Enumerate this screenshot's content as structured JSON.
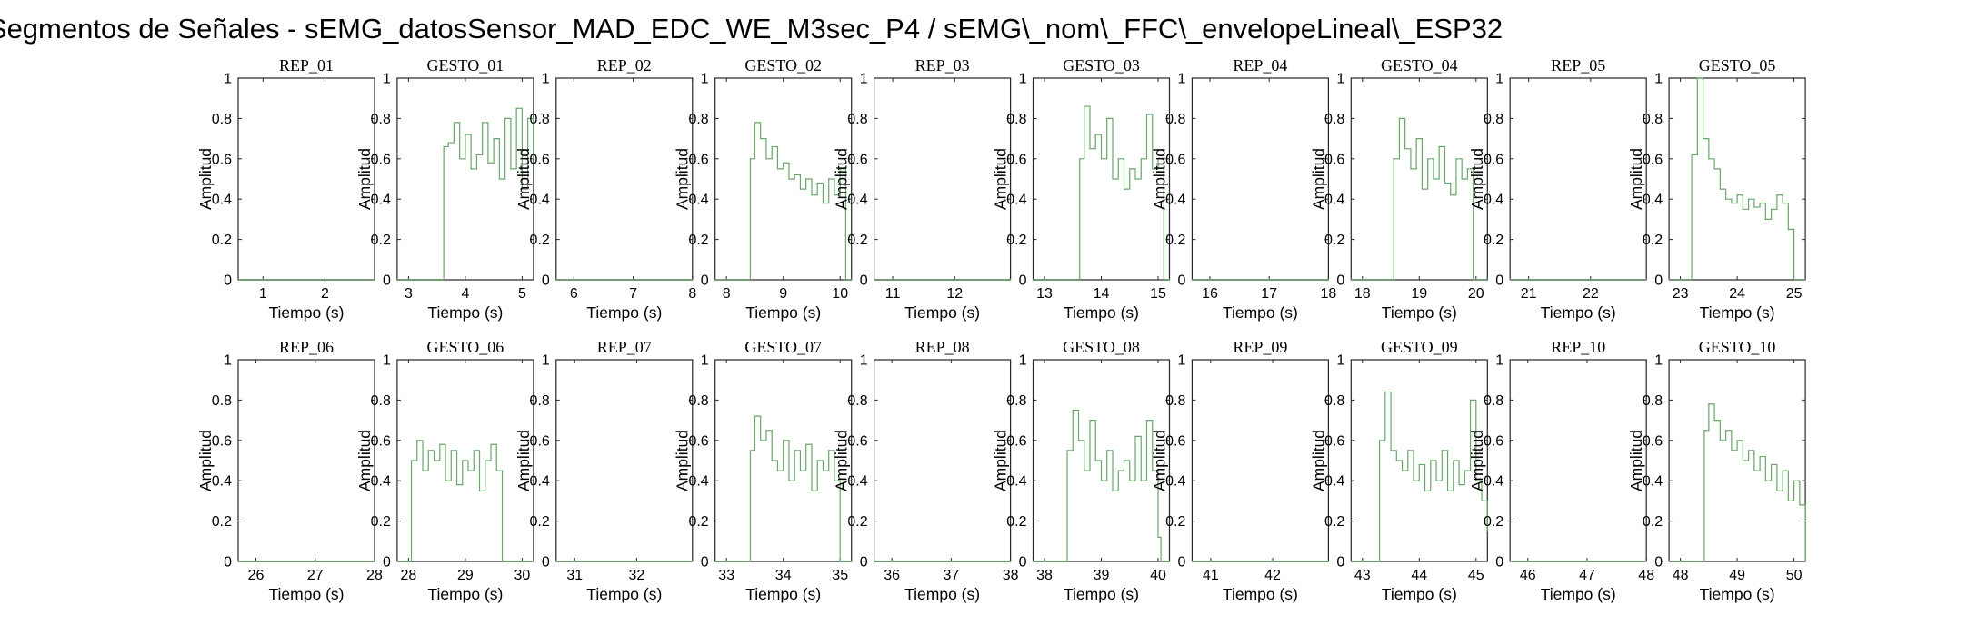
{
  "figure_title": "Segmentos de Señales - sEMG_datosSensor_MAD_EDC_WE_M3sec_P4 / sEMG\\_nom\\_FFC\\_envelopeLineal\\_ESP32",
  "colors": {
    "signal": "#6aa66a",
    "axes": "#262626"
  },
  "chart_data": [
    {
      "type": "line",
      "title": "REP_01",
      "xlabel": "Tiempo (s)",
      "ylabel": "Amplitud",
      "xlim": [
        0.6,
        2.8
      ],
      "ylim": [
        0,
        1
      ],
      "xticks": [
        1,
        2
      ],
      "yticks": [
        0,
        0.2,
        0.4,
        0.6,
        0.8,
        1
      ],
      "kind": "rest",
      "on": null,
      "off": null,
      "x": [
        0.6,
        2.8
      ],
      "y": [
        0.002,
        0.002
      ]
    },
    {
      "type": "line",
      "title": "GESTO_01",
      "xlabel": "Tiempo (s)",
      "ylabel": "Amplitud",
      "xlim": [
        2.8,
        5.2
      ],
      "ylim": [
        0,
        1
      ],
      "xticks": [
        3,
        4,
        5
      ],
      "yticks": [
        0,
        0.2,
        0.4,
        0.6,
        0.8,
        1
      ],
      "kind": "gesture",
      "on": 3.62,
      "off": 5.2,
      "x": [
        2.8,
        3.5,
        3.62,
        3.7,
        3.8,
        3.9,
        4.0,
        4.1,
        4.2,
        4.3,
        4.4,
        4.5,
        4.6,
        4.7,
        4.8,
        4.9,
        5.0,
        5.1,
        5.2
      ],
      "y": [
        0.002,
        0.002,
        0.66,
        0.68,
        0.78,
        0.6,
        0.72,
        0.55,
        0.62,
        0.78,
        0.58,
        0.7,
        0.5,
        0.8,
        0.55,
        0.85,
        0.45,
        0.8,
        0.6
      ]
    },
    {
      "type": "line",
      "title": "REP_02",
      "xlabel": "Tiempo (s)",
      "ylabel": "Amplitud",
      "xlim": [
        5.7,
        8.0
      ],
      "ylim": [
        0,
        1
      ],
      "xticks": [
        6,
        7,
        8
      ],
      "yticks": [
        0,
        0.2,
        0.4,
        0.6,
        0.8,
        1
      ],
      "kind": "rest",
      "on": null,
      "off": null,
      "x": [
        5.7,
        8.0
      ],
      "y": [
        0.002,
        0.002
      ]
    },
    {
      "type": "line",
      "title": "GESTO_02",
      "xlabel": "Tiempo (s)",
      "ylabel": "Amplitud",
      "xlim": [
        7.8,
        10.2
      ],
      "ylim": [
        0,
        1
      ],
      "xticks": [
        8,
        9,
        10
      ],
      "yticks": [
        0,
        0.2,
        0.4,
        0.6,
        0.8,
        1
      ],
      "kind": "gesture",
      "on": 8.42,
      "off": 10.1,
      "x": [
        7.8,
        8.3,
        8.42,
        8.5,
        8.6,
        8.7,
        8.8,
        8.9,
        9.0,
        9.1,
        9.2,
        9.3,
        9.4,
        9.5,
        9.6,
        9.7,
        9.8,
        9.9,
        10.0,
        10.1,
        10.2
      ],
      "y": [
        0.002,
        0.002,
        0.6,
        0.78,
        0.7,
        0.6,
        0.66,
        0.55,
        0.58,
        0.5,
        0.52,
        0.45,
        0.5,
        0.42,
        0.48,
        0.38,
        0.5,
        0.42,
        0.55,
        0.002,
        0.002
      ]
    },
    {
      "type": "line",
      "title": "REP_03",
      "xlabel": "Tiempo (s)",
      "ylabel": "Amplitud",
      "xlim": [
        10.7,
        12.9
      ],
      "ylim": [
        0,
        1
      ],
      "xticks": [
        11,
        12
      ],
      "yticks": [
        0,
        0.2,
        0.4,
        0.6,
        0.8,
        1
      ],
      "kind": "rest",
      "on": null,
      "off": null,
      "x": [
        10.7,
        12.9
      ],
      "y": [
        0.002,
        0.002
      ]
    },
    {
      "type": "line",
      "title": "GESTO_03",
      "xlabel": "Tiempo (s)",
      "ylabel": "Amplitud",
      "xlim": [
        12.8,
        15.2
      ],
      "ylim": [
        0,
        1
      ],
      "xticks": [
        13,
        14,
        15
      ],
      "yticks": [
        0,
        0.2,
        0.4,
        0.6,
        0.8,
        1
      ],
      "kind": "gesture",
      "on": 13.62,
      "off": 15.0,
      "x": [
        12.8,
        13.5,
        13.62,
        13.7,
        13.8,
        13.9,
        14.0,
        14.1,
        14.2,
        14.3,
        14.4,
        14.5,
        14.6,
        14.7,
        14.8,
        14.9,
        15.0,
        15.1,
        15.2
      ],
      "y": [
        0.002,
        0.002,
        0.6,
        0.86,
        0.65,
        0.72,
        0.6,
        0.8,
        0.5,
        0.6,
        0.45,
        0.55,
        0.5,
        0.6,
        0.82,
        0.55,
        0.6,
        0.002,
        0.002
      ]
    },
    {
      "type": "line",
      "title": "REP_04",
      "xlabel": "Tiempo (s)",
      "ylabel": "Amplitud",
      "xlim": [
        15.7,
        18.0
      ],
      "ylim": [
        0,
        1
      ],
      "xticks": [
        16,
        17,
        18
      ],
      "yticks": [
        0,
        0.2,
        0.4,
        0.6,
        0.8,
        1
      ],
      "kind": "rest",
      "on": null,
      "off": null,
      "x": [
        15.7,
        18.0
      ],
      "y": [
        0.002,
        0.002
      ]
    },
    {
      "type": "line",
      "title": "GESTO_04",
      "xlabel": "Tiempo (s)",
      "ylabel": "Amplitud",
      "xlim": [
        17.8,
        20.2
      ],
      "ylim": [
        0,
        1
      ],
      "xticks": [
        18,
        19,
        20
      ],
      "yticks": [
        0,
        0.2,
        0.4,
        0.6,
        0.8,
        1
      ],
      "kind": "gesture",
      "on": 18.55,
      "off": 19.85,
      "x": [
        17.8,
        18.45,
        18.55,
        18.65,
        18.75,
        18.85,
        18.95,
        19.05,
        19.15,
        19.25,
        19.35,
        19.45,
        19.55,
        19.65,
        19.75,
        19.85,
        19.95,
        20.2
      ],
      "y": [
        0.002,
        0.002,
        0.6,
        0.8,
        0.65,
        0.55,
        0.7,
        0.45,
        0.6,
        0.5,
        0.66,
        0.48,
        0.42,
        0.6,
        0.5,
        0.55,
        0.002,
        0.002
      ]
    },
    {
      "type": "line",
      "title": "REP_05",
      "xlabel": "Tiempo (s)",
      "ylabel": "Amplitud",
      "xlim": [
        20.7,
        22.9
      ],
      "ylim": [
        0,
        1
      ],
      "xticks": [
        21,
        22
      ],
      "yticks": [
        0,
        0.2,
        0.4,
        0.6,
        0.8,
        1
      ],
      "kind": "rest",
      "on": null,
      "off": null,
      "x": [
        20.7,
        22.9
      ],
      "y": [
        0.002,
        0.002
      ]
    },
    {
      "type": "line",
      "title": "GESTO_05",
      "xlabel": "Tiempo (s)",
      "ylabel": "Amplitud",
      "xlim": [
        22.8,
        25.2
      ],
      "ylim": [
        0,
        1
      ],
      "xticks": [
        23,
        24,
        25
      ],
      "yticks": [
        0,
        0.2,
        0.4,
        0.6,
        0.8,
        1
      ],
      "kind": "gesture",
      "on": 23.2,
      "off": 25.0,
      "x": [
        22.8,
        23.15,
        23.2,
        23.3,
        23.4,
        23.5,
        23.6,
        23.7,
        23.8,
        23.9,
        24.0,
        24.1,
        24.2,
        24.3,
        24.4,
        24.5,
        24.6,
        24.7,
        24.8,
        24.9,
        25.0,
        25.2
      ],
      "y": [
        0.002,
        0.002,
        0.62,
        1.0,
        0.7,
        0.6,
        0.55,
        0.45,
        0.4,
        0.38,
        0.42,
        0.35,
        0.4,
        0.36,
        0.38,
        0.3,
        0.35,
        0.42,
        0.38,
        0.25,
        0.002,
        0.002
      ]
    },
    {
      "type": "line",
      "title": "REP_06",
      "xlabel": "Tiempo (s)",
      "ylabel": "Amplitud",
      "xlim": [
        25.7,
        28.0
      ],
      "ylim": [
        0,
        1
      ],
      "xticks": [
        26,
        27,
        28
      ],
      "yticks": [
        0,
        0.2,
        0.4,
        0.6,
        0.8,
        1
      ],
      "kind": "rest",
      "on": null,
      "off": null,
      "x": [
        25.7,
        28.0
      ],
      "y": [
        0.002,
        0.002
      ]
    },
    {
      "type": "line",
      "title": "GESTO_06",
      "xlabel": "Tiempo (s)",
      "ylabel": "Amplitud",
      "xlim": [
        27.8,
        30.2
      ],
      "ylim": [
        0,
        1
      ],
      "xticks": [
        28,
        29,
        30
      ],
      "yticks": [
        0,
        0.2,
        0.4,
        0.6,
        0.8,
        1
      ],
      "kind": "gesture",
      "on": 28.05,
      "off": 29.55,
      "x": [
        27.8,
        27.98,
        28.05,
        28.15,
        28.25,
        28.35,
        28.45,
        28.55,
        28.65,
        28.75,
        28.85,
        28.95,
        29.05,
        29.15,
        29.25,
        29.35,
        29.45,
        29.55,
        29.65,
        30.2
      ],
      "y": [
        0.002,
        0.002,
        0.5,
        0.6,
        0.45,
        0.55,
        0.5,
        0.58,
        0.4,
        0.55,
        0.38,
        0.5,
        0.45,
        0.55,
        0.35,
        0.5,
        0.58,
        0.45,
        0.002,
        0.002
      ]
    },
    {
      "type": "line",
      "title": "REP_07",
      "xlabel": "Tiempo (s)",
      "ylabel": "Amplitud",
      "xlim": [
        30.7,
        32.9
      ],
      "ylim": [
        0,
        1
      ],
      "xticks": [
        31,
        32
      ],
      "yticks": [
        0,
        0.2,
        0.4,
        0.6,
        0.8,
        1
      ],
      "kind": "rest",
      "on": null,
      "off": null,
      "x": [
        30.7,
        32.9
      ],
      "y": [
        0.002,
        0.002
      ]
    },
    {
      "type": "line",
      "title": "GESTO_07",
      "xlabel": "Tiempo (s)",
      "ylabel": "Amplitud",
      "xlim": [
        32.8,
        35.2
      ],
      "ylim": [
        0,
        1
      ],
      "xticks": [
        33,
        34,
        35
      ],
      "yticks": [
        0,
        0.2,
        0.4,
        0.6,
        0.8,
        1
      ],
      "kind": "gesture",
      "on": 33.42,
      "off": 35.0,
      "x": [
        32.8,
        33.35,
        33.42,
        33.5,
        33.6,
        33.7,
        33.8,
        33.9,
        34.0,
        34.1,
        34.2,
        34.3,
        34.4,
        34.5,
        34.6,
        34.7,
        34.8,
        34.9,
        35.0,
        35.2
      ],
      "y": [
        0.002,
        0.002,
        0.55,
        0.72,
        0.6,
        0.65,
        0.5,
        0.45,
        0.6,
        0.4,
        0.55,
        0.45,
        0.58,
        0.35,
        0.5,
        0.45,
        0.55,
        0.4,
        0.002,
        0.002
      ]
    },
    {
      "type": "line",
      "title": "REP_08",
      "xlabel": "Tiempo (s)",
      "ylabel": "Amplitud",
      "xlim": [
        35.7,
        38.0
      ],
      "ylim": [
        0,
        1
      ],
      "xticks": [
        36,
        37,
        38
      ],
      "yticks": [
        0,
        0.2,
        0.4,
        0.6,
        0.8,
        1
      ],
      "kind": "rest",
      "on": null,
      "off": null,
      "x": [
        35.7,
        38.0
      ],
      "y": [
        0.002,
        0.002
      ]
    },
    {
      "type": "line",
      "title": "GESTO_08",
      "xlabel": "Tiempo (s)",
      "ylabel": "Amplitud",
      "xlim": [
        37.8,
        40.2
      ],
      "ylim": [
        0,
        1
      ],
      "xticks": [
        38,
        39,
        40
      ],
      "yticks": [
        0,
        0.2,
        0.4,
        0.6,
        0.8,
        1
      ],
      "kind": "gesture",
      "on": 38.4,
      "off": 40.05,
      "x": [
        37.8,
        38.32,
        38.4,
        38.5,
        38.6,
        38.7,
        38.8,
        38.9,
        39.0,
        39.1,
        39.2,
        39.3,
        39.4,
        39.5,
        39.6,
        39.7,
        39.8,
        39.9,
        40.0,
        40.05,
        40.2
      ],
      "y": [
        0.002,
        0.002,
        0.55,
        0.75,
        0.6,
        0.45,
        0.7,
        0.5,
        0.4,
        0.55,
        0.35,
        0.45,
        0.5,
        0.4,
        0.62,
        0.4,
        0.7,
        0.45,
        0.12,
        0.002,
        0.002
      ]
    },
    {
      "type": "line",
      "title": "REP_09",
      "xlabel": "Tiempo (s)",
      "ylabel": "Amplitud",
      "xlim": [
        40.7,
        42.9
      ],
      "ylim": [
        0,
        1
      ],
      "xticks": [
        41,
        42
      ],
      "yticks": [
        0,
        0.2,
        0.4,
        0.6,
        0.8,
        1
      ],
      "kind": "rest",
      "on": null,
      "off": null,
      "x": [
        40.7,
        42.9
      ],
      "y": [
        0.002,
        0.002
      ]
    },
    {
      "type": "line",
      "title": "GESTO_09",
      "xlabel": "Tiempo (s)",
      "ylabel": "Amplitud",
      "xlim": [
        42.8,
        45.2
      ],
      "ylim": [
        0,
        1
      ],
      "xticks": [
        43,
        44,
        45
      ],
      "yticks": [
        0,
        0.2,
        0.4,
        0.6,
        0.8,
        1
      ],
      "kind": "gesture",
      "on": 43.3,
      "off": 45.2,
      "x": [
        42.8,
        43.25,
        43.3,
        43.4,
        43.5,
        43.6,
        43.7,
        43.8,
        43.9,
        44.0,
        44.1,
        44.2,
        44.3,
        44.4,
        44.5,
        44.6,
        44.7,
        44.8,
        44.9,
        45.0,
        45.1,
        45.2
      ],
      "y": [
        0.002,
        0.002,
        0.6,
        0.84,
        0.55,
        0.5,
        0.45,
        0.55,
        0.4,
        0.48,
        0.35,
        0.5,
        0.4,
        0.55,
        0.35,
        0.5,
        0.38,
        0.45,
        0.8,
        0.4,
        0.3,
        0.15
      ]
    },
    {
      "type": "line",
      "title": "REP_10",
      "xlabel": "Tiempo (s)",
      "ylabel": "Amplitud",
      "xlim": [
        45.7,
        48.0
      ],
      "ylim": [
        0,
        1
      ],
      "xticks": [
        46,
        47,
        48
      ],
      "yticks": [
        0,
        0.2,
        0.4,
        0.6,
        0.8,
        1
      ],
      "kind": "rest",
      "on": null,
      "off": null,
      "x": [
        45.7,
        48.0
      ],
      "y": [
        0.002,
        0.002
      ]
    },
    {
      "type": "line",
      "title": "GESTO_10",
      "xlabel": "Tiempo (s)",
      "ylabel": "Amplitud",
      "xlim": [
        47.8,
        50.2
      ],
      "ylim": [
        0,
        1
      ],
      "xticks": [
        48,
        49,
        50
      ],
      "yticks": [
        0,
        0.2,
        0.4,
        0.6,
        0.8,
        1
      ],
      "kind": "gesture",
      "on": 48.42,
      "off": 50.2,
      "x": [
        47.8,
        48.35,
        48.42,
        48.5,
        48.6,
        48.7,
        48.8,
        48.9,
        49.0,
        49.1,
        49.2,
        49.3,
        49.4,
        49.5,
        49.6,
        49.7,
        49.8,
        49.9,
        50.0,
        50.1,
        50.2
      ],
      "y": [
        0.002,
        0.002,
        0.65,
        0.78,
        0.7,
        0.6,
        0.65,
        0.55,
        0.6,
        0.5,
        0.55,
        0.45,
        0.52,
        0.4,
        0.48,
        0.35,
        0.45,
        0.3,
        0.4,
        0.28,
        0.002
      ]
    }
  ]
}
